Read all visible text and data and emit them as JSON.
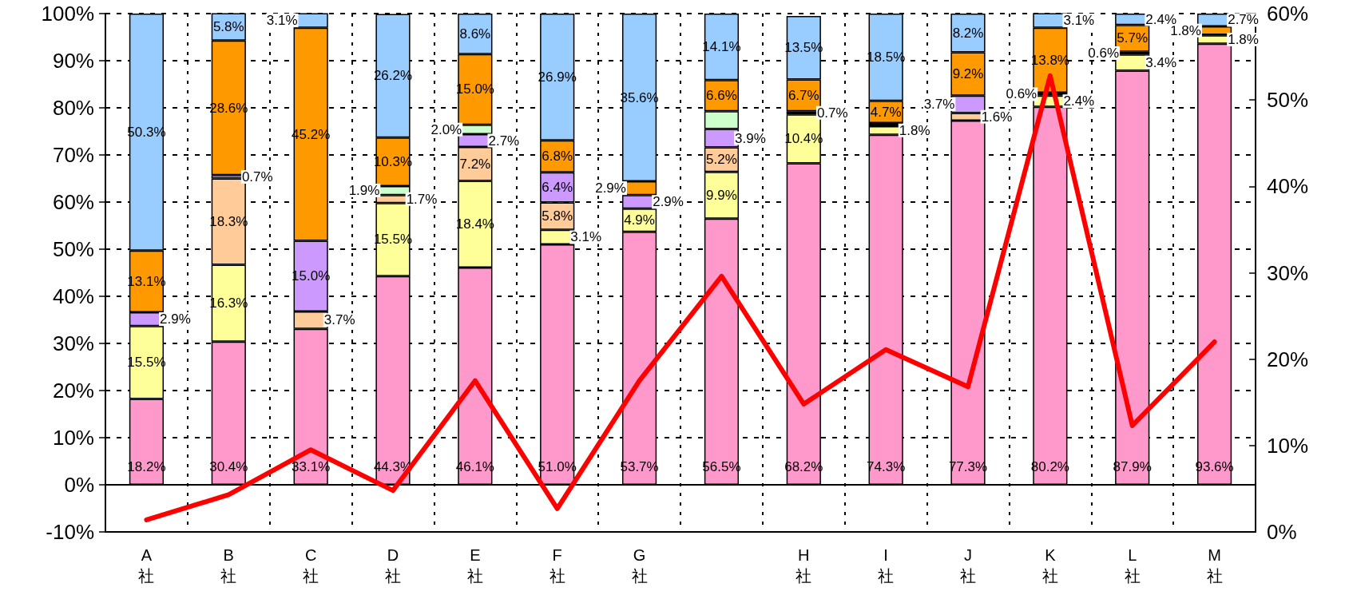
{
  "chart_data": {
    "type": "bar",
    "stacked": true,
    "categories": [
      "A社",
      "B社",
      "C社",
      "D社",
      "E社",
      "F社",
      "G社",
      null,
      "H社",
      "I社",
      "J社",
      "K社",
      "L社",
      "M社"
    ],
    "series": [
      {
        "color": "#ff99cc",
        "values": [
          18.2,
          30.4,
          33.1,
          44.3,
          46.1,
          51.0,
          53.7,
          56.5,
          68.2,
          74.3,
          77.3,
          80.2,
          87.9,
          93.6
        ],
        "value_labels": [
          "18.2%",
          "30.4%",
          "33.1%",
          "44.3%",
          "46.1%",
          "51.0%",
          "53.7%",
          "56.5%",
          "68.2%",
          "74.3%",
          "77.3%",
          "80.2%",
          "87.9%",
          "93.6%"
        ]
      },
      {
        "color": "#ffff99",
        "values": [
          15.5,
          16.3,
          null,
          15.5,
          18.4,
          3.1,
          4.9,
          9.9,
          10.4,
          1.8,
          null,
          2.4,
          3.4,
          1.8
        ],
        "value_labels": [
          "15.5%",
          "16.3%",
          null,
          "15.5%",
          "18.4%",
          "3.1%",
          "4.9%",
          "9.9%",
          "10.4%",
          "1.8%",
          null,
          "2.4%",
          "3.4%",
          "1.8%"
        ]
      },
      {
        "color": "#ffcc99",
        "values": [
          null,
          18.3,
          3.7,
          1.7,
          7.2,
          5.8,
          null,
          5.2,
          null,
          null,
          1.6,
          null,
          null,
          null
        ],
        "value_labels": [
          null,
          "18.3%",
          "3.7%",
          "1.7%",
          "7.2%",
          "5.8%",
          null,
          "5.2%",
          null,
          null,
          "1.6%",
          null,
          null,
          null
        ]
      },
      {
        "color": "#cc99ff",
        "values": [
          2.9,
          0.7,
          15.0,
          null,
          2.7,
          6.4,
          2.9,
          3.9,
          null,
          null,
          3.7,
          null,
          null,
          null
        ],
        "value_labels": [
          "2.9%",
          "0.7%",
          "15.0%",
          null,
          "2.7%",
          "6.4%",
          "2.9%",
          "3.9%",
          null,
          null,
          "3.7%",
          null,
          null,
          null
        ]
      },
      {
        "color": "#ccffcc",
        "values": [
          null,
          null,
          null,
          1.9,
          2.0,
          null,
          null,
          3.8,
          null,
          null,
          null,
          null,
          null,
          null
        ],
        "value_labels": [
          null,
          null,
          null,
          "1.9%",
          "2.0%",
          null,
          null,
          null,
          null,
          null,
          null,
          null,
          null,
          null
        ]
      },
      {
        "color": "#000000",
        "values": [
          null,
          null,
          null,
          null,
          null,
          null,
          null,
          null,
          0.7,
          0.7,
          null,
          0.6,
          0.6,
          0.1
        ],
        "value_labels": [
          null,
          null,
          null,
          null,
          null,
          null,
          null,
          null,
          "0.7%",
          null,
          null,
          "0.6%",
          "0.6%",
          null
        ]
      },
      {
        "color": "#ff9900",
        "values": [
          13.1,
          28.6,
          45.2,
          10.3,
          15.0,
          6.8,
          2.9,
          6.6,
          6.7,
          4.7,
          9.2,
          13.8,
          5.7,
          1.8
        ],
        "value_labels": [
          "13.1%",
          "28.6%",
          "45.2%",
          "10.3%",
          "15.0%",
          "6.8%",
          "2.9%",
          "6.6%",
          "6.7%",
          "4.7%",
          "9.2%",
          "13.8%",
          "5.7%",
          "1.8%"
        ]
      },
      {
        "color": "#99ccff",
        "values": [
          50.3,
          5.8,
          3.1,
          26.2,
          8.6,
          26.9,
          35.6,
          14.1,
          13.5,
          18.5,
          8.2,
          3.1,
          2.4,
          2.7
        ],
        "value_labels": [
          "50.3%",
          "5.8%",
          "3.1%",
          "26.2%",
          "8.6%",
          "26.9%",
          "35.6%",
          "14.1%",
          "13.5%",
          "18.5%",
          "8.2%",
          "3.1%",
          "2.4%",
          "2.7%"
        ]
      },
      {
        "type": "line",
        "axis": "y2",
        "color": "#ff0000",
        "values": [
          1.4,
          4.3,
          9.5,
          4.8,
          17.5,
          2.7,
          17.5,
          29.6,
          14.8,
          21.1,
          16.8,
          52.8,
          12.3,
          22.0
        ]
      }
    ],
    "ylim": [
      -10,
      100
    ],
    "yticks": [
      {
        "value": -10,
        "label": "-10%"
      },
      {
        "value": 0,
        "label": "0%"
      },
      {
        "value": 10,
        "label": "10%"
      },
      {
        "value": 20,
        "label": "20%"
      },
      {
        "value": 30,
        "label": "30%"
      },
      {
        "value": 40,
        "label": "40%"
      },
      {
        "value": 50,
        "label": "50%"
      },
      {
        "value": 60,
        "label": "60%"
      },
      {
        "value": 70,
        "label": "70%"
      },
      {
        "value": 80,
        "label": "80%"
      },
      {
        "value": 90,
        "label": "90%"
      },
      {
        "value": 100,
        "label": "100%"
      }
    ],
    "y2lim": [
      0,
      60
    ],
    "y2ticks": [
      {
        "value": 0,
        "label": "0%"
      },
      {
        "value": 10,
        "label": "10%"
      },
      {
        "value": 20,
        "label": "20%"
      },
      {
        "value": 30,
        "label": "30%"
      },
      {
        "value": 40,
        "label": "40%"
      },
      {
        "value": 50,
        "label": "50%"
      },
      {
        "value": 60,
        "label": "60%"
      }
    ],
    "ref_lines": [
      {
        "axis": "y",
        "value": 0,
        "color": "#000000",
        "line_style": "solid"
      }
    ],
    "grid": true,
    "marker": "none",
    "line_style": "solid"
  }
}
